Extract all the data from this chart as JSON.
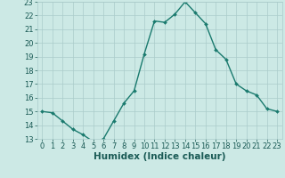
{
  "x": [
    0,
    1,
    2,
    3,
    4,
    5,
    6,
    7,
    8,
    9,
    10,
    11,
    12,
    13,
    14,
    15,
    16,
    17,
    18,
    19,
    20,
    21,
    22,
    23
  ],
  "y": [
    15.0,
    14.9,
    14.3,
    13.7,
    13.3,
    12.8,
    13.0,
    14.3,
    15.6,
    16.5,
    19.2,
    21.6,
    21.5,
    22.1,
    23.0,
    22.2,
    21.4,
    19.5,
    18.8,
    17.0,
    16.5,
    16.2,
    15.2,
    15.0
  ],
  "xlabel": "Humidex (Indice chaleur)",
  "ylim": [
    13,
    23
  ],
  "xlim": [
    -0.5,
    23.5
  ],
  "yticks": [
    13,
    14,
    15,
    16,
    17,
    18,
    19,
    20,
    21,
    22,
    23
  ],
  "xticks": [
    0,
    1,
    2,
    3,
    4,
    5,
    6,
    7,
    8,
    9,
    10,
    11,
    12,
    13,
    14,
    15,
    16,
    17,
    18,
    19,
    20,
    21,
    22,
    23
  ],
  "line_color": "#1a7a6e",
  "marker_color": "#1a7a6e",
  "bg_color": "#cce9e5",
  "grid_color": "#aaccca",
  "xlabel_fontsize": 7.5,
  "tick_fontsize": 6.0,
  "linewidth": 1.0,
  "markersize": 2.0
}
